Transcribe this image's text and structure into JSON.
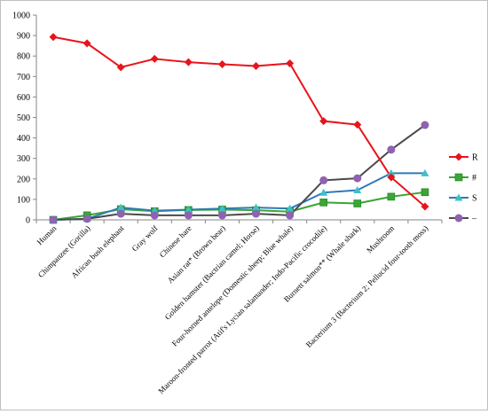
{
  "chart_data": {
    "type": "line",
    "title": "",
    "xlabel": "",
    "ylabel": "",
    "ylim": [
      0,
      1000
    ],
    "yticks": [
      0,
      100,
      200,
      300,
      400,
      500,
      600,
      700,
      800,
      900,
      1000
    ],
    "grid": "off",
    "legend_position": "right",
    "categories": [
      "Human",
      "Chimpanzee (Gorilla)",
      "African bush elephant",
      "Gray wolf",
      "Chinese hare",
      "Asian rat* (Brown bear)",
      "Golden hamster (Bactrian camel; Horse)",
      "Four-horned antelope (Domestic sheep; Blue whale)",
      "Maroon-fronted parrot (Atif's Lycian salamander; Indo-Pacific crocodile)",
      "Burnett salmon** (Whale shark)",
      "Mushroom",
      "Bacterium 3 (Bacterium 2; Pellucid four-tooth moss)"
    ],
    "series": [
      {
        "name": "R",
        "color": "#e8141c",
        "marker": "diamond",
        "values": [
          893,
          862,
          745,
          786,
          770,
          760,
          751,
          764,
          482,
          465,
          208,
          65
        ]
      },
      {
        "name": "#",
        "color": "#3aa635",
        "marker": "square",
        "values": [
          0,
          22,
          52,
          42,
          48,
          50,
          47,
          40,
          85,
          80,
          113,
          135
        ]
      },
      {
        "name": "S",
        "color": "#2e7ab8",
        "marker": "triangle",
        "values": [
          0,
          5,
          60,
          45,
          50,
          55,
          60,
          55,
          133,
          145,
          228,
          228
        ]
      },
      {
        "name": "–",
        "color": "#4a4a4a",
        "marker": "circle",
        "values": [
          0,
          5,
          30,
          22,
          22,
          22,
          30,
          22,
          193,
          203,
          343,
          463
        ]
      }
    ]
  }
}
